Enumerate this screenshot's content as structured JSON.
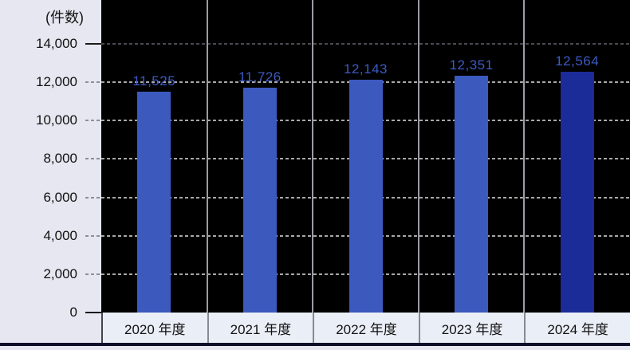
{
  "chart_data": {
    "type": "bar",
    "title": "",
    "unit_label": "(件数)",
    "categories": [
      "2020 年度",
      "2021 年度",
      "2022 年度",
      "2023 年度",
      "2024 年度"
    ],
    "values": [
      11525,
      11726,
      12143,
      12351,
      12564
    ],
    "value_labels": [
      "11,525",
      "11,726",
      "12,143",
      "12,351",
      "12,564"
    ],
    "ylim": [
      0,
      14000
    ],
    "ytick_step": 2000,
    "ytick_labels": [
      "0",
      "2,000",
      "4,000",
      "6,000",
      "8,000",
      "10,000",
      "12,000",
      "14,000"
    ],
    "grid": "horizontal-dotted",
    "legend": "none",
    "colors": {
      "bar_default": "#3c59be",
      "bar_final": "#1b2b97",
      "value_label": "#3d5ac4",
      "plot_background": "#000000",
      "outer_background": "#e7e7f1",
      "band_background": "#eaeef6",
      "gridline": "#a8a8a8",
      "gridline_top": "#4a4a52",
      "tick_solid": "#1a1a1a",
      "tick_dotted": "#8f8f98",
      "divider": "#9c9ca4",
      "baseline": "#0e0e28",
      "axis_text": "#111111"
    }
  }
}
